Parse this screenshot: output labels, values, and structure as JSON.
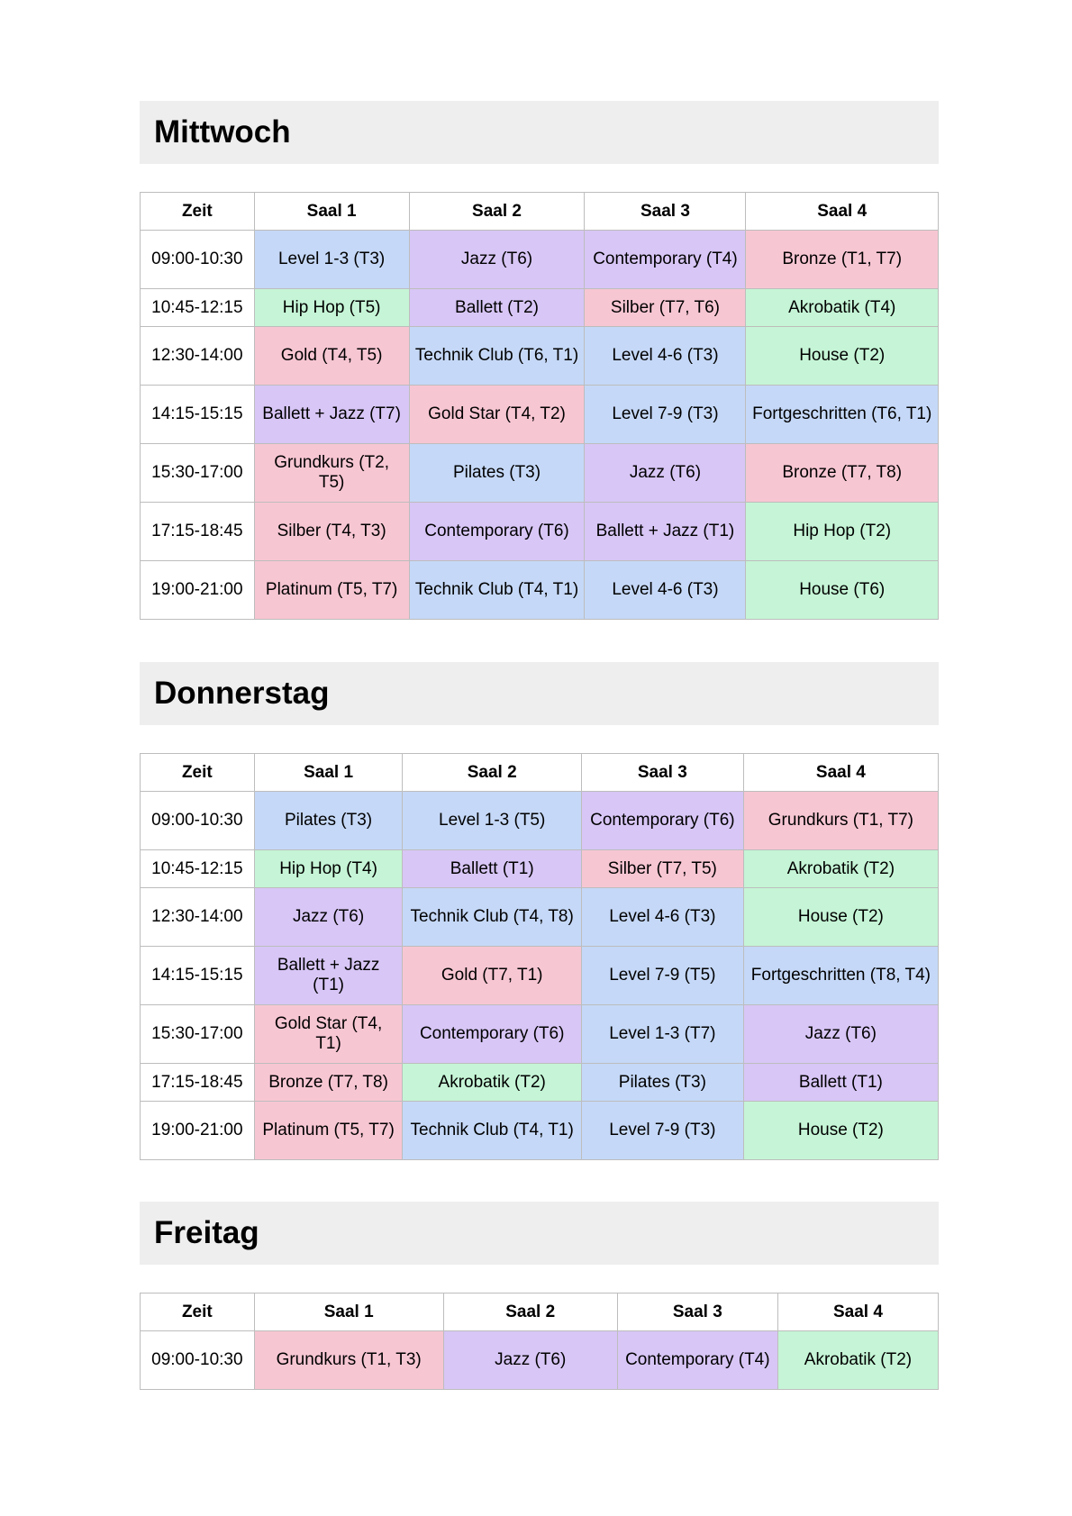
{
  "colors": {
    "blue": "#c5d8f7",
    "purple": "#d8c6f6",
    "pink": "#f7c6d3",
    "green": "#c5f5d6",
    "header_bg": "#eeeeee",
    "border": "#bdbdbd"
  },
  "days": [
    {
      "title": "Mittwoch",
      "headers": [
        "Zeit",
        "Saal 1",
        "Saal 2",
        "Saal 3",
        "Saal 4"
      ],
      "col_widths": [
        "14.3%",
        "19.4%",
        "22.0%",
        "20.2%",
        "24.1%"
      ],
      "rows": [
        {
          "time": "09:00-10:30",
          "tall": true,
          "cells": [
            {
              "text": "Level 1-3 (T3)",
              "color": "blue"
            },
            {
              "text": "Jazz (T6)",
              "color": "purple"
            },
            {
              "text": "Contemporary (T4)",
              "color": "purple"
            },
            {
              "text": "Bronze (T1, T7)",
              "color": "pink"
            }
          ]
        },
        {
          "time": "10:45-12:15",
          "tall": false,
          "cells": [
            {
              "text": "Hip Hop (T5)",
              "color": "green"
            },
            {
              "text": "Ballett (T2)",
              "color": "purple"
            },
            {
              "text": "Silber (T7, T6)",
              "color": "pink"
            },
            {
              "text": "Akrobatik (T4)",
              "color": "green"
            }
          ]
        },
        {
          "time": "12:30-14:00",
          "tall": true,
          "cells": [
            {
              "text": "Gold (T4, T5)",
              "color": "pink"
            },
            {
              "text": "Technik Club (T6, T1)",
              "color": "blue"
            },
            {
              "text": "Level 4-6 (T3)",
              "color": "blue"
            },
            {
              "text": "House (T2)",
              "color": "green"
            }
          ]
        },
        {
          "time": "14:15-15:15",
          "tall": true,
          "cells": [
            {
              "text": "Ballett + Jazz (T7)",
              "color": "purple"
            },
            {
              "text": "Gold Star (T4, T2)",
              "color": "pink"
            },
            {
              "text": "Level 7-9 (T3)",
              "color": "blue"
            },
            {
              "text": "Fortgeschritten (T6, T1)",
              "color": "blue"
            }
          ]
        },
        {
          "time": "15:30-17:00",
          "tall": true,
          "cells": [
            {
              "text": "Grundkurs (T2, T5)",
              "color": "pink"
            },
            {
              "text": "Pilates (T3)",
              "color": "blue"
            },
            {
              "text": "Jazz (T6)",
              "color": "purple"
            },
            {
              "text": "Bronze (T7, T8)",
              "color": "pink"
            }
          ]
        },
        {
          "time": "17:15-18:45",
          "tall": true,
          "cells": [
            {
              "text": "Silber (T4, T3)",
              "color": "pink"
            },
            {
              "text": "Contemporary (T6)",
              "color": "purple"
            },
            {
              "text": "Ballett + Jazz (T1)",
              "color": "purple"
            },
            {
              "text": "Hip Hop (T2)",
              "color": "green"
            }
          ]
        },
        {
          "time": "19:00-21:00",
          "tall": true,
          "cells": [
            {
              "text": "Platinum (T5, T7)",
              "color": "pink"
            },
            {
              "text": "Technik Club (T4, T1)",
              "color": "blue"
            },
            {
              "text": "Level 4-6 (T3)",
              "color": "blue"
            },
            {
              "text": "House (T6)",
              "color": "green"
            }
          ]
        }
      ]
    },
    {
      "title": "Donnerstag",
      "headers": [
        "Zeit",
        "Saal 1",
        "Saal 2",
        "Saal 3",
        "Saal 4"
      ],
      "col_widths": [
        "14.3%",
        "18.6%",
        "22.4%",
        "20.3%",
        "24.4%"
      ],
      "rows": [
        {
          "time": "09:00-10:30",
          "tall": true,
          "cells": [
            {
              "text": "Pilates (T3)",
              "color": "blue"
            },
            {
              "text": "Level 1-3 (T5)",
              "color": "blue"
            },
            {
              "text": "Contemporary (T6)",
              "color": "purple"
            },
            {
              "text": "Grundkurs (T1, T7)",
              "color": "pink"
            }
          ]
        },
        {
          "time": "10:45-12:15",
          "tall": false,
          "cells": [
            {
              "text": "Hip Hop (T4)",
              "color": "green"
            },
            {
              "text": "Ballett (T1)",
              "color": "purple"
            },
            {
              "text": "Silber (T7, T5)",
              "color": "pink"
            },
            {
              "text": "Akrobatik (T2)",
              "color": "green"
            }
          ]
        },
        {
          "time": "12:30-14:00",
          "tall": true,
          "cells": [
            {
              "text": "Jazz (T6)",
              "color": "purple"
            },
            {
              "text": "Technik Club (T4, T8)",
              "color": "blue"
            },
            {
              "text": "Level 4-6 (T3)",
              "color": "blue"
            },
            {
              "text": "House (T2)",
              "color": "green"
            }
          ]
        },
        {
          "time": "14:15-15:15",
          "tall": true,
          "cells": [
            {
              "text": "Ballett + Jazz (T1)",
              "color": "purple"
            },
            {
              "text": "Gold (T7, T1)",
              "color": "pink"
            },
            {
              "text": "Level 7-9 (T5)",
              "color": "blue"
            },
            {
              "text": "Fortgeschritten (T8, T4)",
              "color": "blue"
            }
          ]
        },
        {
          "time": "15:30-17:00",
          "tall": true,
          "cells": [
            {
              "text": "Gold Star (T4, T1)",
              "color": "pink"
            },
            {
              "text": "Contemporary (T6)",
              "color": "purple"
            },
            {
              "text": "Level 1-3 (T7)",
              "color": "blue"
            },
            {
              "text": "Jazz (T6)",
              "color": "purple"
            }
          ]
        },
        {
          "time": "17:15-18:45",
          "tall": false,
          "cells": [
            {
              "text": "Bronze (T7, T8)",
              "color": "pink"
            },
            {
              "text": "Akrobatik (T2)",
              "color": "green"
            },
            {
              "text": "Pilates (T3)",
              "color": "blue"
            },
            {
              "text": "Ballett (T1)",
              "color": "purple"
            }
          ]
        },
        {
          "time": "19:00-21:00",
          "tall": true,
          "cells": [
            {
              "text": "Platinum (T5, T7)",
              "color": "pink"
            },
            {
              "text": "Technik Club (T4, T1)",
              "color": "blue"
            },
            {
              "text": "Level 7-9 (T3)",
              "color": "blue"
            },
            {
              "text": "House (T2)",
              "color": "green"
            }
          ]
        }
      ]
    },
    {
      "title": "Freitag",
      "headers": [
        "Zeit",
        "Saal 1",
        "Saal 2",
        "Saal 3",
        "Saal 4"
      ],
      "col_widths": [
        "14.3%",
        "23.7%",
        "21.8%",
        "20.1%",
        "20.1%"
      ],
      "rows": [
        {
          "time": "09:00-10:30",
          "tall": true,
          "cells": [
            {
              "text": "Grundkurs (T1, T3)",
              "color": "pink"
            },
            {
              "text": "Jazz (T6)",
              "color": "purple"
            },
            {
              "text": "Contemporary (T4)",
              "color": "purple"
            },
            {
              "text": "Akrobatik (T2)",
              "color": "green"
            }
          ]
        }
      ]
    }
  ]
}
